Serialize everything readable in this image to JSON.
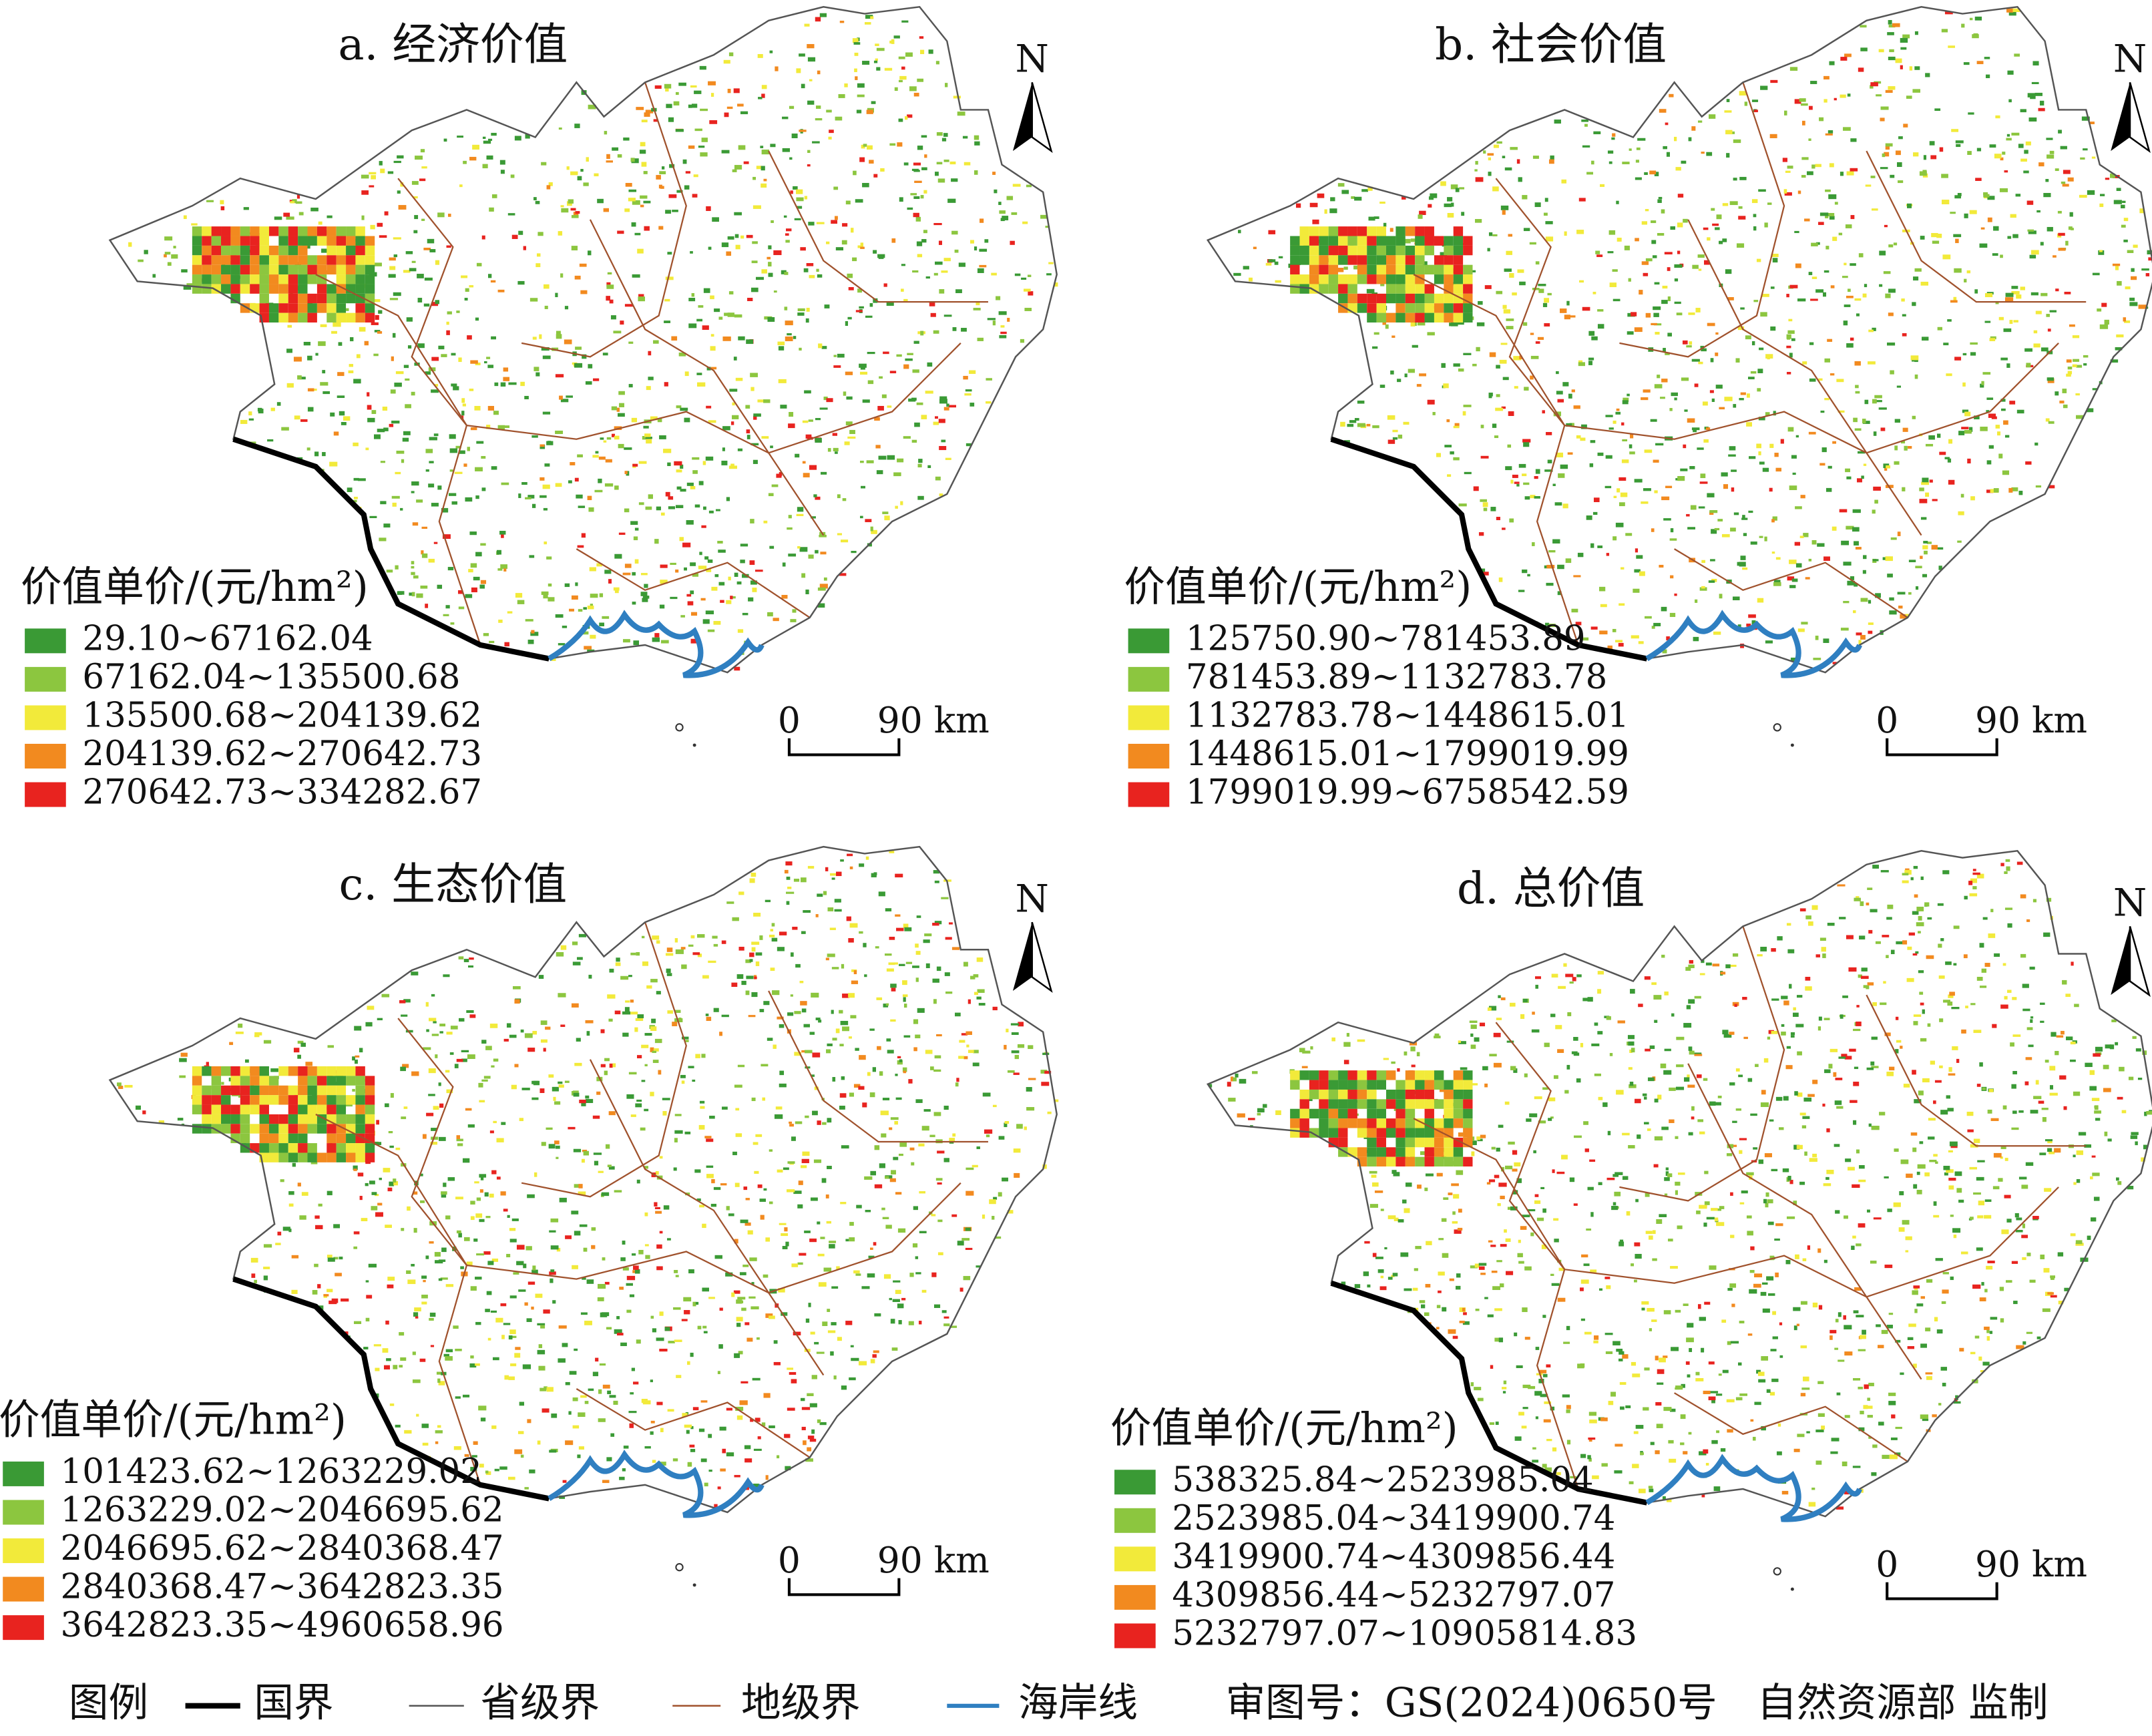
{
  "panels": [
    {
      "title": "a. 经济价值",
      "legend_title": "价值单价/(元/hm²)",
      "classes": [
        "29.10~67162.04",
        "67162.04~135500.68",
        "135500.68~204139.62",
        "204139.62~270642.73",
        "270642.73~334282.67"
      ]
    },
    {
      "title": "b. 社会价值",
      "legend_title": "价值单价/(元/hm²)",
      "classes": [
        "125750.90~781453.89",
        "781453.89~1132783.78",
        "1132783.78~1448615.01",
        "1448615.01~1799019.99",
        "1799019.99~6758542.59"
      ]
    },
    {
      "title": "c. 生态价值",
      "legend_title": "价值单价/(元/hm²)",
      "classes": [
        "101423.62~1263229.02",
        "1263229.02~2046695.62",
        "2046695.62~2840368.47",
        "2840368.47~3642823.35",
        "3642823.35~4960658.96"
      ]
    },
    {
      "title": "d. 总价值",
      "legend_title": "价值单价/(元/hm²)",
      "classes": [
        "538325.84~2523985.04",
        "2523985.04~3419900.74",
        "3419900.74~4309856.44",
        "4309856.44~5232797.07",
        "5232797.07~10905814.83"
      ]
    }
  ],
  "class_colors": [
    "#3a9a35",
    "#8cc63f",
    "#f2ea3a",
    "#f28a1f",
    "#e8231f"
  ],
  "north": "N",
  "scale_bar": {
    "start": "0",
    "end": "90 km"
  },
  "legend": {
    "title": "图例",
    "items": [
      {
        "label": "国界",
        "color": "#000000"
      },
      {
        "label": "省级界",
        "color": "#555555"
      },
      {
        "label": "地级界",
        "color": "#a0522d"
      },
      {
        "label": "海岸线",
        "color": "#2f7fc1"
      }
    ]
  },
  "approval": "审图号：GS(2024)0650号　自然资源部  监制"
}
